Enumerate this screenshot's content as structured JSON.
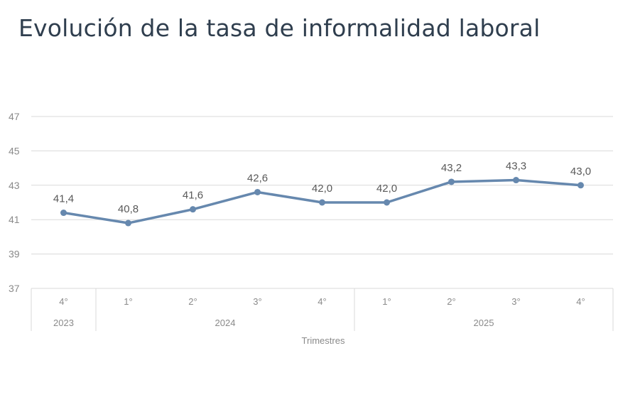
{
  "title": "Evolución de la tasa de informalidad laboral",
  "chart_data": {
    "type": "line",
    "title": "Evolución de la tasa de informalidad laboral",
    "xlabel": "Trimestres",
    "ylabel": "",
    "ylim": [
      37,
      47
    ],
    "yticks": [
      "37",
      "39",
      "41",
      "43",
      "45",
      "47"
    ],
    "categories": [
      "4°",
      "1°",
      "2°",
      "3°",
      "4°",
      "1°",
      "2°",
      "3°",
      "4°"
    ],
    "groups": [
      {
        "label": "2023",
        "count": 1
      },
      {
        "label": "2024",
        "count": 4
      },
      {
        "label": "2025",
        "count": 4
      }
    ],
    "series": [
      {
        "name": "Tasa de informalidad laboral",
        "color": "#6688ae",
        "values": [
          41.4,
          40.8,
          41.6,
          42.6,
          42.0,
          42.0,
          43.2,
          43.3,
          43.0
        ],
        "labels": [
          "41,4",
          "40,8",
          "41,6",
          "42,6",
          "42,0",
          "42,0",
          "43,2",
          "43,3",
          "43,0"
        ]
      }
    ],
    "grid": true
  }
}
